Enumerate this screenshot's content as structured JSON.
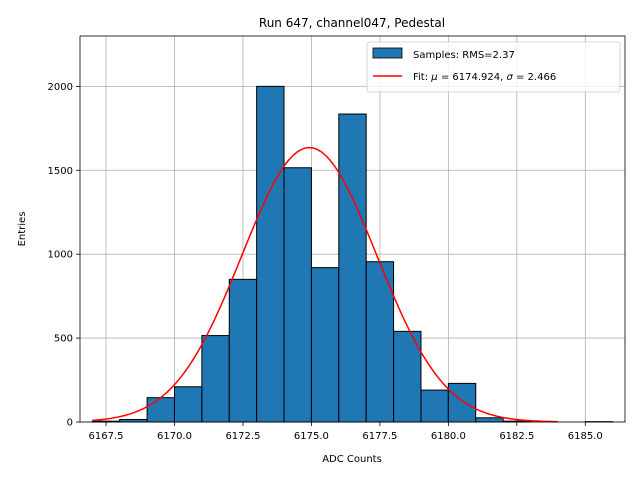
{
  "chart_data": {
    "type": "bar",
    "title": "Run 647, channel047, Pedestal",
    "xlabel": "ADC Counts",
    "ylabel": "Entries",
    "xlim": [
      6166.55,
      6186.45
    ],
    "ylim": [
      0,
      2300
    ],
    "grid": true,
    "xticks": [
      6167.5,
      6170.0,
      6172.5,
      6175.0,
      6177.5,
      6180.0,
      6182.5,
      6185.0
    ],
    "xtick_labels": [
      "6167.5",
      "6170.0",
      "6172.5",
      "6175.0",
      "6177.5",
      "6180.0",
      "6182.5",
      "6185.0"
    ],
    "yticks": [
      0,
      500,
      1000,
      1500,
      2000
    ],
    "ytick_labels": [
      "0",
      "500",
      "1000",
      "1500",
      "2000"
    ],
    "series": [
      {
        "name": "Samples: RMS=2.37",
        "kind": "histogram",
        "color": "#1f77b4",
        "edgecolor": "#000000",
        "bins": [
          {
            "lo": 6167,
            "hi": 6168,
            "count": 5
          },
          {
            "lo": 6168,
            "hi": 6169,
            "count": 15
          },
          {
            "lo": 6169,
            "hi": 6170,
            "count": 145
          },
          {
            "lo": 6170,
            "hi": 6171,
            "count": 210
          },
          {
            "lo": 6171,
            "hi": 6172,
            "count": 515
          },
          {
            "lo": 6172,
            "hi": 6173,
            "count": 850
          },
          {
            "lo": 6173,
            "hi": 6174,
            "count": 2000
          },
          {
            "lo": 6174,
            "hi": 6175,
            "count": 1515
          },
          {
            "lo": 6175,
            "hi": 6176,
            "count": 920
          },
          {
            "lo": 6176,
            "hi": 6177,
            "count": 1835
          },
          {
            "lo": 6177,
            "hi": 6178,
            "count": 955
          },
          {
            "lo": 6178,
            "hi": 6179,
            "count": 540
          },
          {
            "lo": 6179,
            "hi": 6180,
            "count": 190
          },
          {
            "lo": 6180,
            "hi": 6181,
            "count": 230
          },
          {
            "lo": 6181,
            "hi": 6182,
            "count": 25
          },
          {
            "lo": 6182,
            "hi": 6183,
            "count": 5
          },
          {
            "lo": 6183,
            "hi": 6184,
            "count": 0
          },
          {
            "lo": 6184,
            "hi": 6185,
            "count": 0
          },
          {
            "lo": 6185,
            "hi": 6186,
            "count": 2
          }
        ]
      },
      {
        "name": "Fit: μ = 6174.924, σ = 2.466",
        "kind": "gaussian",
        "color": "#ff0000",
        "mu": 6174.924,
        "sigma": 2.466,
        "amplitude": 1635,
        "x_range": [
          6167,
          6184
        ]
      }
    ],
    "legend": {
      "position": "top-right",
      "entries": [
        {
          "label_prefix": "Samples: RMS=2.37",
          "label_suffix": ""
        },
        {
          "label_prefix": "Fit: ",
          "mu_symbol": "μ",
          "mid": " = 6174.924, ",
          "sigma_symbol": "σ",
          "label_suffix": " = 2.466"
        }
      ]
    }
  }
}
